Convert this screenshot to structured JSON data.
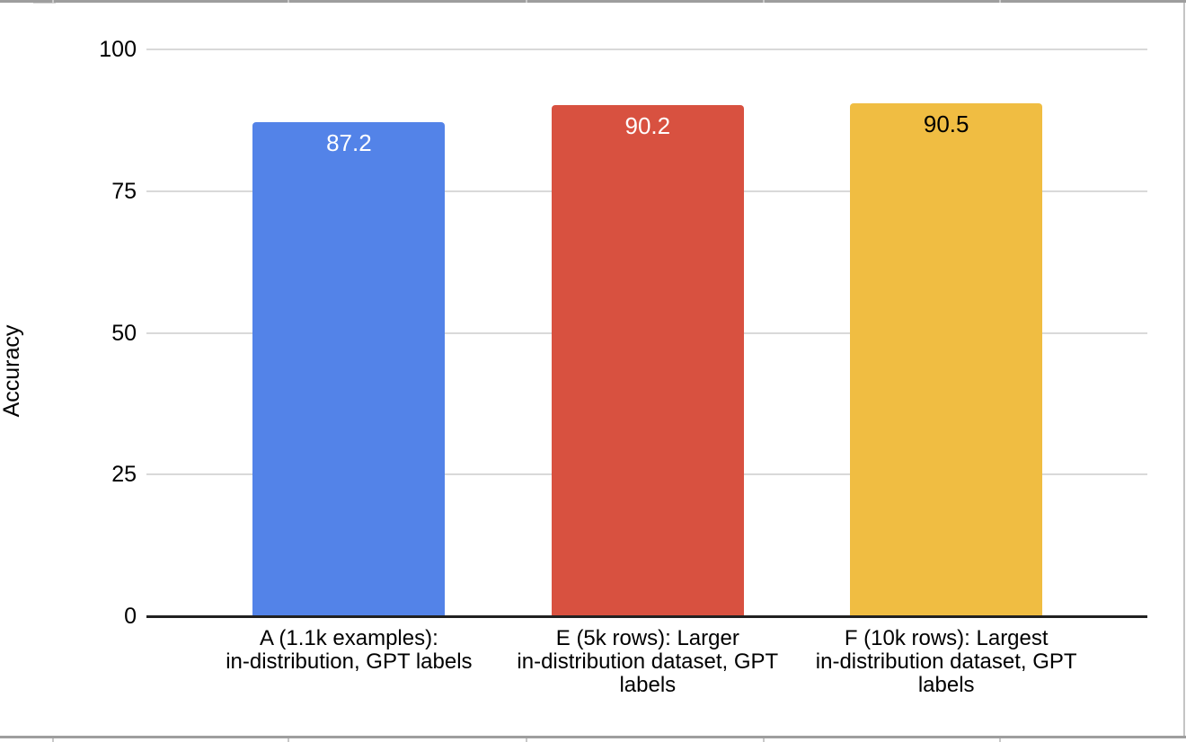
{
  "chart_data": {
    "type": "bar",
    "title": "",
    "ylabel": "Accuracy",
    "xlabel": "",
    "ylim": [
      0,
      100
    ],
    "yticks": [
      0,
      25,
      50,
      75,
      100
    ],
    "ytick_labels": [
      "0",
      "25",
      "50",
      "75",
      "100"
    ],
    "grid": true,
    "legend": "none",
    "categories": [
      "A (1.1k examples):\nin-distribution, GPT labels",
      "E (5k rows): Larger\nin-distribution dataset, GPT\nlabels",
      "F (10k rows): Largest\nin-distribution dataset, GPT\nlabels"
    ],
    "series": [
      {
        "name": "Accuracy",
        "values": [
          87.2,
          90.2,
          90.5
        ]
      }
    ],
    "value_labels": [
      "87.2",
      "90.2",
      "90.5"
    ],
    "bar_colors": [
      "#5383E8",
      "#D85140",
      "#F0BD42"
    ],
    "value_label_colors": [
      "#FFFFFF",
      "#FFFFFF",
      "#000000"
    ],
    "background_color": "#FFFFFF",
    "gridline_color": "#D9D9D9",
    "axis_line_color": "#212121",
    "text_color": "#000000"
  },
  "spreadsheet_chrome": {
    "row_border_color": "#9E9E9E",
    "column_gridline_color": "#C9C9C9",
    "cell_fragment_color": "#D6D6D6",
    "right_border_color": "#C4C4C4"
  }
}
